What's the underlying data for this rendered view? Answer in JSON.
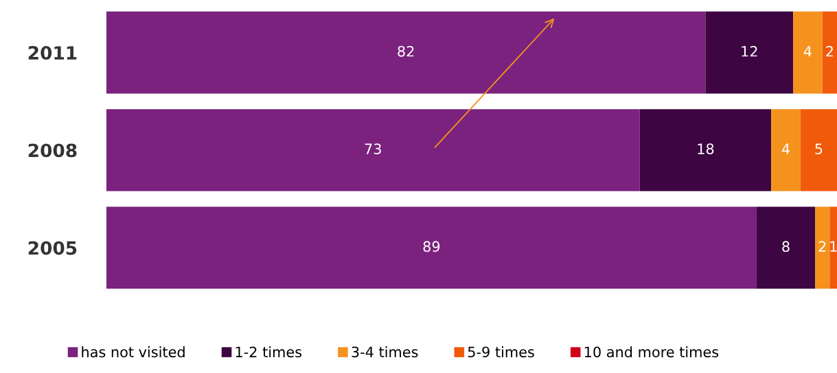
{
  "chart_data": {
    "type": "bar",
    "orientation": "horizontal",
    "stacked": true,
    "data_labels": true,
    "legend": "bottom",
    "grid": false,
    "tick_labels": "y",
    "xlim": [
      0,
      100
    ],
    "categories": [
      "2011",
      "2008",
      "2005"
    ],
    "series": [
      {
        "name": "has not visited",
        "color": "#7a227e",
        "values": [
          82,
          73,
          89
        ]
      },
      {
        "name": "1-2 times",
        "color": "#3d0642",
        "values": [
          12,
          18,
          8
        ]
      },
      {
        "name": "3-4 times",
        "color": "#f5921e",
        "values": [
          4,
          4,
          2
        ]
      },
      {
        "name": "5-9 times",
        "color": "#f05a0a",
        "values": [
          2,
          5,
          1
        ]
      },
      {
        "name": "10 and more times",
        "color": "#d0021b",
        "values": [
          null,
          null,
          null
        ]
      }
    ]
  }
}
